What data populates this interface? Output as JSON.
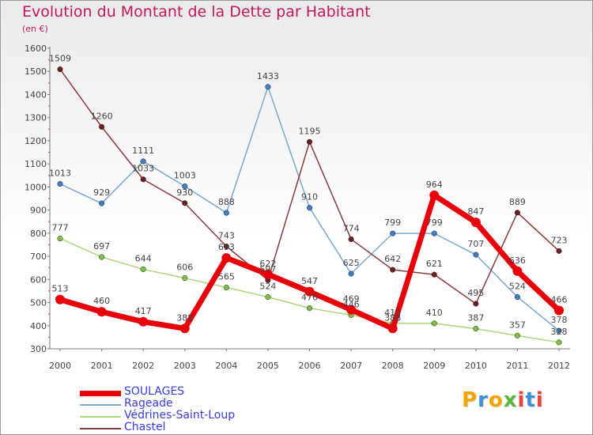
{
  "title": "Evolution du Montant de la Dette par Habitant",
  "unit": "(en €)",
  "logo": {
    "text": "Proxiti",
    "colors": [
      "#f4a300",
      "#3f8fd6",
      "#f4a300",
      "#5cb83a",
      "#e8413c",
      "#3f8fd6",
      "#e8413c"
    ]
  },
  "chart_data": {
    "type": "line",
    "x": [
      2000,
      2001,
      2002,
      2003,
      2004,
      2005,
      2006,
      2007,
      2008,
      2009,
      2010,
      2011,
      2012
    ],
    "ylim": [
      300,
      1600
    ],
    "yticks": [
      300,
      400,
      500,
      600,
      700,
      800,
      900,
      1000,
      1100,
      1200,
      1300,
      1400,
      1500,
      1600
    ],
    "grid": false,
    "legend_position": "bottom-left",
    "series": [
      {
        "name": "SOULAGES",
        "color": "#e8000a",
        "width": 7,
        "dot": "#e8000a",
        "values": [
          513,
          460,
          417,
          388,
          693,
          622,
          547,
          469,
          388,
          964,
          847,
          636,
          466
        ]
      },
      {
        "name": "Rageade",
        "color": "#7aa8d0",
        "width": 1.5,
        "dot": "#3b7fc4",
        "values": [
          1013,
          929,
          1111,
          1003,
          888,
          1433,
          910,
          625,
          799,
          799,
          707,
          524,
          378
        ]
      },
      {
        "name": "Védrines-Saint-Loup",
        "color": "#a8d878",
        "width": 1.5,
        "dot": "#7cc242",
        "values": [
          777,
          697,
          644,
          606,
          565,
          524,
          476,
          446,
          410,
          410,
          387,
          357,
          328
        ]
      },
      {
        "name": "Chastel",
        "color": "#8b3a3a",
        "width": 1.5,
        "dot": "#6b1f1f",
        "values": [
          1509,
          1260,
          1033,
          930,
          743,
          597,
          1195,
          774,
          642,
          621,
          495,
          889,
          723
        ]
      }
    ]
  }
}
